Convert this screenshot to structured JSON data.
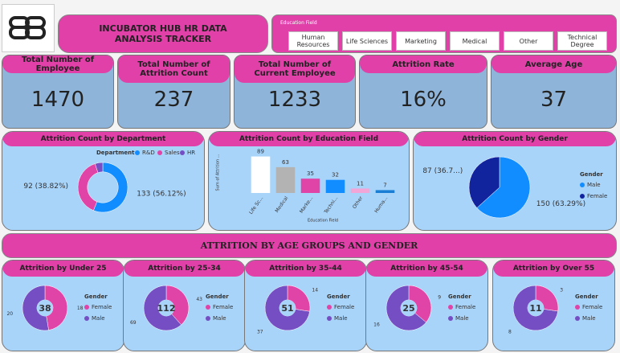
{
  "header": {
    "title": "INCUBATOR HUB HR DATA ANALYSIS TRACKER"
  },
  "filter": {
    "label": "Education Field",
    "options": [
      "Human Resources",
      "Life Sciences",
      "Marketing",
      "Medical",
      "Other",
      "Technical Degree"
    ]
  },
  "kpis": [
    {
      "label": "Total Number of Employee",
      "value": 1470
    },
    {
      "label": "Total Number of Attrition Count",
      "value": 237
    },
    {
      "label": "Total Number of Current Employee",
      "value": 1233
    },
    {
      "label": "Attrition Rate",
      "value": "16%"
    },
    {
      "label": "Average Age",
      "value": 37
    }
  ],
  "banner": "ATTRITION BY AGE GROUPS AND GENDER",
  "chart_data": [
    {
      "type": "donut",
      "title": "Attrition Count by Department",
      "legend_title": "Department",
      "legend": "top",
      "categories": [
        "R&D",
        "Sales",
        "HR"
      ],
      "values": [
        133,
        92,
        12
      ],
      "value_labels": [
        "133 (56.12%)",
        "92 (38.82%)",
        null
      ],
      "colors": [
        "#118dff",
        "#e044a7",
        "#744ec2"
      ]
    },
    {
      "type": "bar",
      "title": "Attrition Count by Education Field",
      "xlabel": "Education Field",
      "ylabel": "Sum of Attrition ...",
      "categories": [
        "Life Sc...",
        "Medical",
        "Marke...",
        "Techni...",
        "Other",
        "Huma..."
      ],
      "values": [
        89,
        63,
        35,
        32,
        11,
        7
      ],
      "ylim": [
        0,
        100
      ],
      "colors": [
        "#ffffff",
        "#b3b3b3",
        "#e044a7",
        "#118dff",
        "#f2a6d8",
        "#1a7fd4"
      ]
    },
    {
      "type": "pie",
      "title": "Attrition Count by Gender",
      "legend_title": "Gender",
      "legend": "right",
      "categories": [
        "Male",
        "Female"
      ],
      "values": [
        150,
        87
      ],
      "value_labels": [
        "150 (63.29%)",
        "87 (36.7...)"
      ],
      "colors": [
        "#118dff",
        "#12239e"
      ]
    },
    {
      "type": "donut",
      "title": "Attrition by Under 25",
      "legend_title": "Gender",
      "legend": "right",
      "categories": [
        "Female",
        "Male"
      ],
      "values": [
        18,
        20
      ],
      "total": 38,
      "colors": [
        "#e044a7",
        "#744ec2"
      ]
    },
    {
      "type": "donut",
      "title": "Attrition by 25-34",
      "legend_title": "Gender",
      "legend": "right",
      "categories": [
        "Female",
        "Male"
      ],
      "values": [
        43,
        69
      ],
      "total": 112,
      "colors": [
        "#e044a7",
        "#744ec2"
      ]
    },
    {
      "type": "donut",
      "title": "Attrition by 35-44",
      "legend_title": "Gender",
      "legend": "right",
      "categories": [
        "Female",
        "Male"
      ],
      "values": [
        14,
        37
      ],
      "total": 51,
      "colors": [
        "#e044a7",
        "#744ec2"
      ]
    },
    {
      "type": "donut",
      "title": "Attrition by 45-54",
      "legend_title": "Gender",
      "legend": "right",
      "categories": [
        "Female",
        "Male"
      ],
      "values": [
        9,
        16
      ],
      "total": 25,
      "colors": [
        "#e044a7",
        "#744ec2"
      ]
    },
    {
      "type": "donut",
      "title": "Attrition by Over 55",
      "legend_title": "Gender",
      "legend": "right",
      "categories": [
        "Female",
        "Male"
      ],
      "values": [
        3,
        8
      ],
      "total": 11,
      "colors": [
        "#e044a7",
        "#744ec2"
      ]
    }
  ]
}
